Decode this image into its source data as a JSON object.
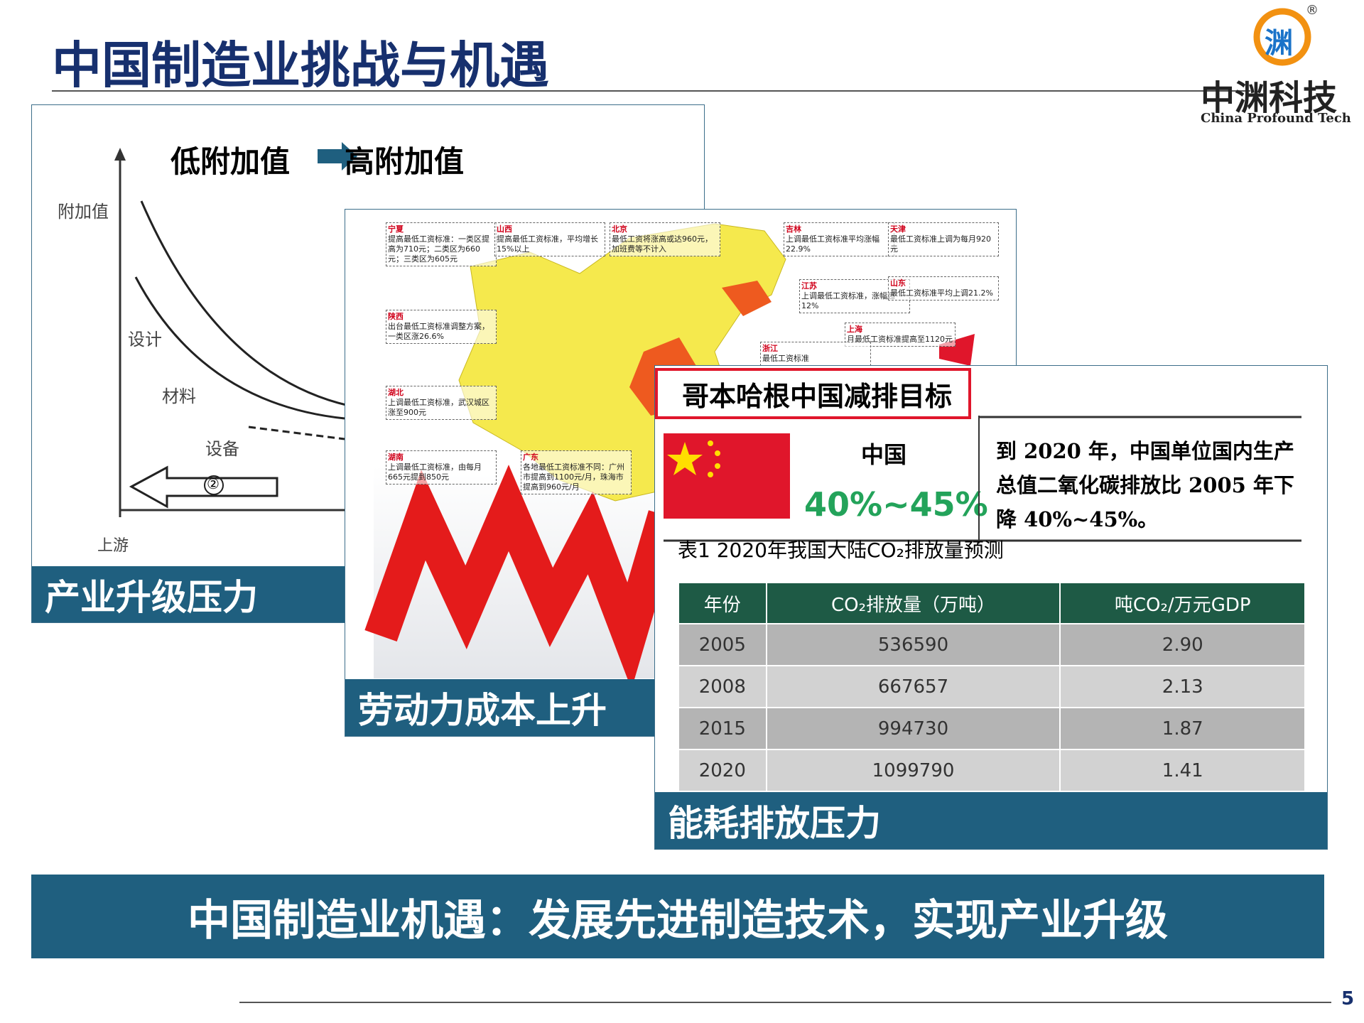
{
  "header": {
    "title": "中国制造业挑战与机遇"
  },
  "logo": {
    "mark": "渊",
    "registered": "®",
    "name": "中渊科技",
    "english": "China Profound Tech"
  },
  "industry_panel": {
    "heading_low": "低附加值",
    "heading_high": "高附加值",
    "y_axis": "附加值",
    "labels": [
      "设计",
      "材料",
      "设备"
    ],
    "circle": "②",
    "x_axis": "上游",
    "caption": "产业升级压力"
  },
  "labor_panel": {
    "annotations": [
      {
        "region": "宁夏",
        "text": "提高最低工资标准：一类区提高为710元；二类区为660元；三类区为605元"
      },
      {
        "region": "山西",
        "text": "提高最低工资标准，平均增长15%以上"
      },
      {
        "region": "北京",
        "text": "最低工资将涨高或达960元，加班费等不计入"
      },
      {
        "region": "吉林",
        "text": "上调最低工资标准平均涨幅22.9%"
      },
      {
        "region": "天津",
        "text": "最低工资标准上调为每月920元"
      },
      {
        "region": "江苏",
        "text": "上调最低工资标准，涨幅超12%"
      },
      {
        "region": "山东",
        "text": "最低工资标准平均上调21.2%"
      },
      {
        "region": "陕西",
        "text": "出台最低工资标准调整方案，一类区涨26.6%"
      },
      {
        "region": "上海",
        "text": "月最低工资标准提高至1120元"
      },
      {
        "region": "浙江",
        "text": "最低工资标准"
      },
      {
        "region": "湖北",
        "text": "上调最低工资标准，武汉城区涨至900元"
      },
      {
        "region": "湖南",
        "text": "上调最低工资标准，由每月665元提到850元"
      },
      {
        "region": "广东",
        "text": "各地最低工资标准不同：广州市提高到1100元/月，珠海市提高到960元/月"
      }
    ],
    "caption": "劳动力成本上升"
  },
  "energy_panel": {
    "title": "哥本哈根中国减排目标",
    "country": "中国",
    "target": "40%~45%",
    "statement": "到 2020 年，中国单位国内生产总值二氧化碳排放比 2005 年下降 40%~45%。",
    "table": {
      "caption": "表1  2020年我国大陆CO₂排放量预测",
      "header": [
        "年份",
        "CO₂排放量（万吨）",
        "吨CO₂/万元GDP"
      ],
      "rows": [
        [
          "2005",
          "536590",
          "2.90"
        ],
        [
          "2008",
          "667657",
          "2.13"
        ],
        [
          "2015",
          "994730",
          "1.87"
        ],
        [
          "2020",
          "1099790",
          "1.41"
        ]
      ]
    },
    "caption": "能耗排放压力"
  },
  "banner": {
    "text": "中国制造业机遇：发展先进制造技术，实现产业升级"
  },
  "footer": {
    "page": "5"
  }
}
